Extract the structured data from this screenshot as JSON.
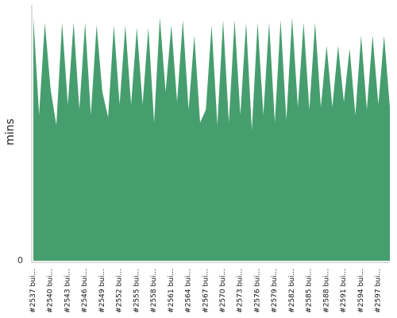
{
  "chart_data": {
    "type": "area",
    "ylabel": "mins",
    "y_tick_labels": [
      "0"
    ],
    "color": "#469e6e",
    "axis_color": "#bbbbbb",
    "x_tick_labels": [
      "#2537 bui...",
      "#2540 bui...",
      "#2543 bui...",
      "#2546 bui...",
      "#2549 bui...",
      "#2552 bui...",
      "#2555 bui...",
      "#2558 bui...",
      "#2561 bui...",
      "#2564 bui...",
      "#2567 bui...",
      "#2570 bui...",
      "#2573 bui...",
      "#2576 bui...",
      "#2579 bui...",
      "#2582 bui...",
      "#2585 bui...",
      "#2588 bui...",
      "#2591 bui...",
      "#2594 bui...",
      "#2597 bui..."
    ],
    "ylim": [
      0,
      100
    ],
    "values": [
      95,
      57,
      93,
      67,
      53,
      93,
      61,
      93,
      59,
      93,
      57,
      92,
      66,
      56,
      92,
      61,
      92,
      61,
      91,
      61,
      91,
      54,
      95,
      66,
      92,
      62,
      94,
      59,
      88,
      54,
      59,
      92,
      53,
      94,
      54,
      94,
      57,
      93,
      51,
      93,
      57,
      93,
      54,
      94,
      55,
      95,
      60,
      93,
      59,
      93,
      60,
      84,
      60,
      84,
      62,
      83,
      57,
      88,
      59,
      88,
      61,
      88,
      60
    ]
  }
}
